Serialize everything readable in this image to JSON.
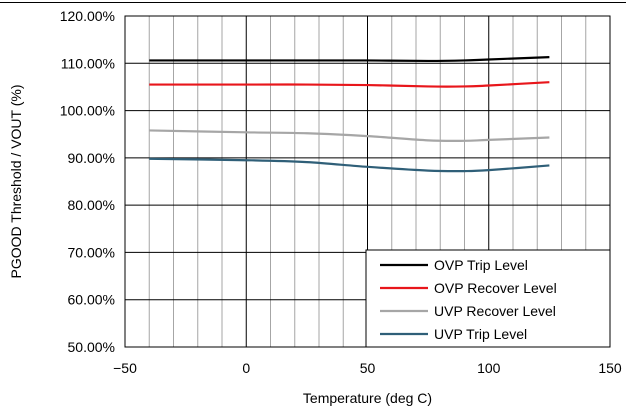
{
  "chart_data": {
    "type": "line",
    "xlabel": "Temperature (deg C)",
    "ylabel": "PGOOD Threshold / VOUT (%)",
    "xlim": [
      -50,
      150
    ],
    "ylim": [
      50,
      120
    ],
    "x_ticks": [
      -50,
      0,
      50,
      100,
      150
    ],
    "x_tick_labels": [
      "−50",
      "0",
      "50",
      "100",
      "150"
    ],
    "y_ticks": [
      50,
      60,
      70,
      80,
      90,
      100,
      110,
      120
    ],
    "y_tick_labels": [
      "50.00%",
      "60.00%",
      "70.00%",
      "80.00%",
      "90.00%",
      "100.00%",
      "110.00%",
      "120.00%"
    ],
    "x_minor_step": 10,
    "y_minor_step": 10,
    "grid": true,
    "legend_position": "bottom-right",
    "series": [
      {
        "name": "OVP Trip Level",
        "color": "#000000",
        "x": [
          -40,
          0,
          25,
          50,
          75,
          90,
          100,
          125
        ],
        "y": [
          110.6,
          110.6,
          110.6,
          110.6,
          110.5,
          110.6,
          110.8,
          111.3
        ]
      },
      {
        "name": "OVP Recover Level",
        "color": "#e8161b",
        "x": [
          -40,
          0,
          25,
          50,
          75,
          90,
          100,
          125
        ],
        "y": [
          105.5,
          105.5,
          105.5,
          105.4,
          105.1,
          105.1,
          105.3,
          106.0
        ]
      },
      {
        "name": "UVP Recover Level",
        "color": "#a6a6a6",
        "x": [
          -40,
          0,
          25,
          50,
          75,
          90,
          100,
          125
        ],
        "y": [
          95.8,
          95.4,
          95.2,
          94.6,
          93.7,
          93.6,
          93.8,
          94.3
        ]
      },
      {
        "name": "UVP Trip Level",
        "color": "#2f5f78",
        "x": [
          -40,
          0,
          25,
          50,
          75,
          90,
          100,
          125
        ],
        "y": [
          89.8,
          89.5,
          89.1,
          88.1,
          87.3,
          87.2,
          87.4,
          88.4
        ]
      }
    ]
  }
}
